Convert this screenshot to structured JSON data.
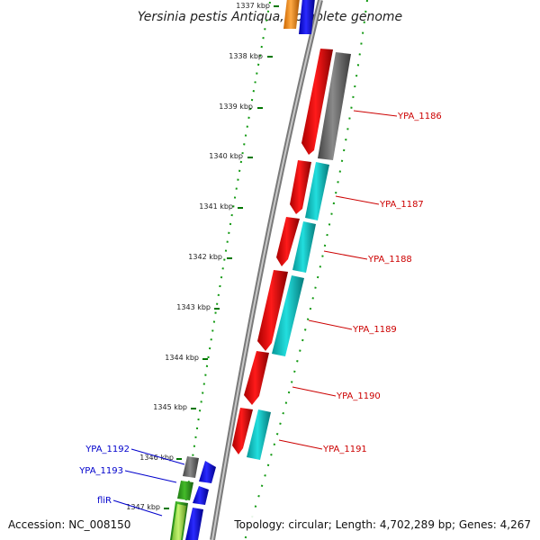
{
  "title": "Yersinia pestis Antiqua, complete genome",
  "accession": "Accession: NC_008150",
  "topology": "Topology: circular; Length: 4,702,289 bp; Genes: 4,267",
  "tick_labels": [
    "1337 kbp",
    "1338 kbp",
    "1339 kbp",
    "1340 kbp",
    "1341 kbp",
    "1342 kbp",
    "1343 kbp",
    "1344 kbp",
    "1345 kbp",
    "1346 kbp",
    "1347 kbp"
  ],
  "gene_labels_right": [
    "YPA_1186",
    "YPA_1187",
    "YPA_1188",
    "YPA_1189",
    "YPA_1190",
    "YPA_1191"
  ],
  "gene_labels_left": [
    "YPA_1192",
    "YPA_1193",
    "fliR"
  ],
  "colors": {
    "label_right": "#cc0000",
    "label_left": "#0000cc",
    "tick": "#007700",
    "backbone": "#888888",
    "red": "#ff0000",
    "gray": "#777777",
    "cyan": "#11c6c6",
    "blue": "#1111ff",
    "green": "#33aa22",
    "lime": "#aaee55",
    "orange": "#ff9922"
  }
}
